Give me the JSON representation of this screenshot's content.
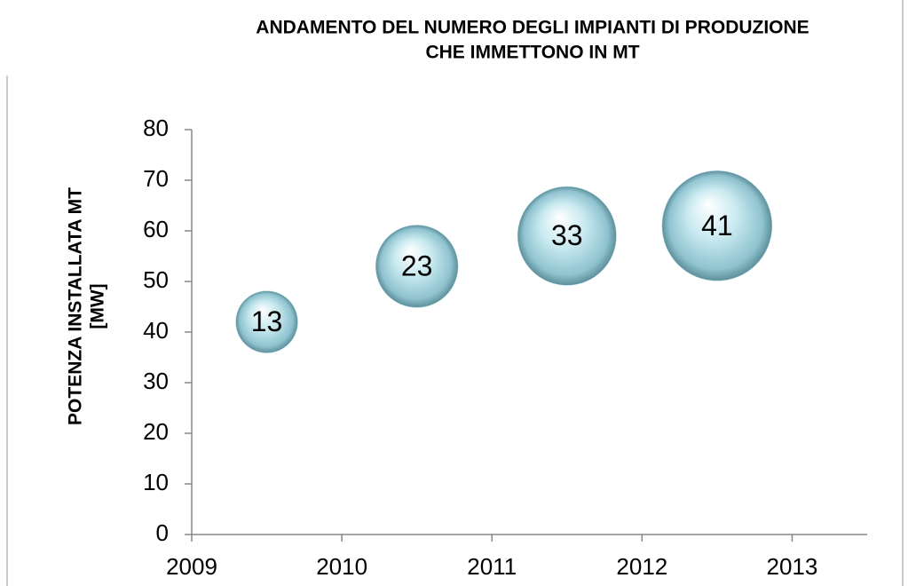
{
  "chart_data": {
    "type": "bubble",
    "title": [
      "ANDAMENTO DEL NUMERO DEGLI IMPIANTI DI PRODUZIONE",
      "CHE IMMETTONO IN MT"
    ],
    "y_label": [
      "POTENZA INSTALLATA MT",
      "[MW]"
    ],
    "x": [
      2009.5,
      2010.5,
      2011.5,
      2012.5
    ],
    "series": [
      {
        "color": "#a8d8e2",
        "values": [
          42,
          53,
          59,
          61
        ],
        "sizes": [
          13,
          23,
          33,
          41
        ]
      }
    ],
    "xlim": [
      2009,
      2013.5
    ],
    "xticks": [
      2009,
      2010,
      2011,
      2012,
      2013
    ],
    "ylim": [
      0,
      80
    ],
    "yticks": [
      0,
      10,
      20,
      30,
      40,
      50,
      60,
      70,
      80
    ]
  }
}
